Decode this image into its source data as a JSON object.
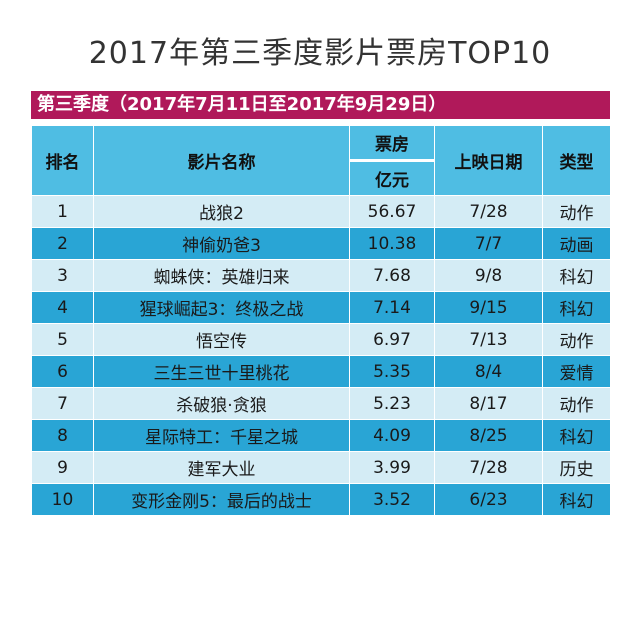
{
  "title": "2017年第三季度影片票房TOP10",
  "banner": "第三季度（2017年7月11日至2017年9月29日）",
  "columns": {
    "rank": "排名",
    "name": "影片名称",
    "box_office_top": "票房",
    "box_office_unit": "亿元",
    "date": "上映日期",
    "genre": "类型"
  },
  "rows": [
    {
      "rank": "1",
      "name": "战狼2",
      "box": "56.67",
      "date": "7/28",
      "genre": "动作"
    },
    {
      "rank": "2",
      "name": "神偷奶爸3",
      "box": "10.38",
      "date": "7/7",
      "genre": "动画"
    },
    {
      "rank": "3",
      "name": "蜘蛛侠：英雄归来",
      "box": "7.68",
      "date": "9/8",
      "genre": "科幻"
    },
    {
      "rank": "4",
      "name": "猩球崛起3：终极之战",
      "box": "7.14",
      "date": "9/15",
      "genre": "科幻"
    },
    {
      "rank": "5",
      "name": "悟空传",
      "box": "6.97",
      "date": "7/13",
      "genre": "动作"
    },
    {
      "rank": "6",
      "name": "三生三世十里桃花",
      "box": "5.35",
      "date": "8/4",
      "genre": "爱情"
    },
    {
      "rank": "7",
      "name": "杀破狼·贪狼",
      "box": "5.23",
      "date": "8/17",
      "genre": "动作"
    },
    {
      "rank": "8",
      "name": "星际特工：千星之城",
      "box": "4.09",
      "date": "8/25",
      "genre": "科幻"
    },
    {
      "rank": "9",
      "name": "建军大业",
      "box": "3.99",
      "date": "7/28",
      "genre": "历史"
    },
    {
      "rank": "10",
      "name": "变形金刚5：最后的战士",
      "box": "3.52",
      "date": "6/23",
      "genre": "科幻"
    }
  ]
}
